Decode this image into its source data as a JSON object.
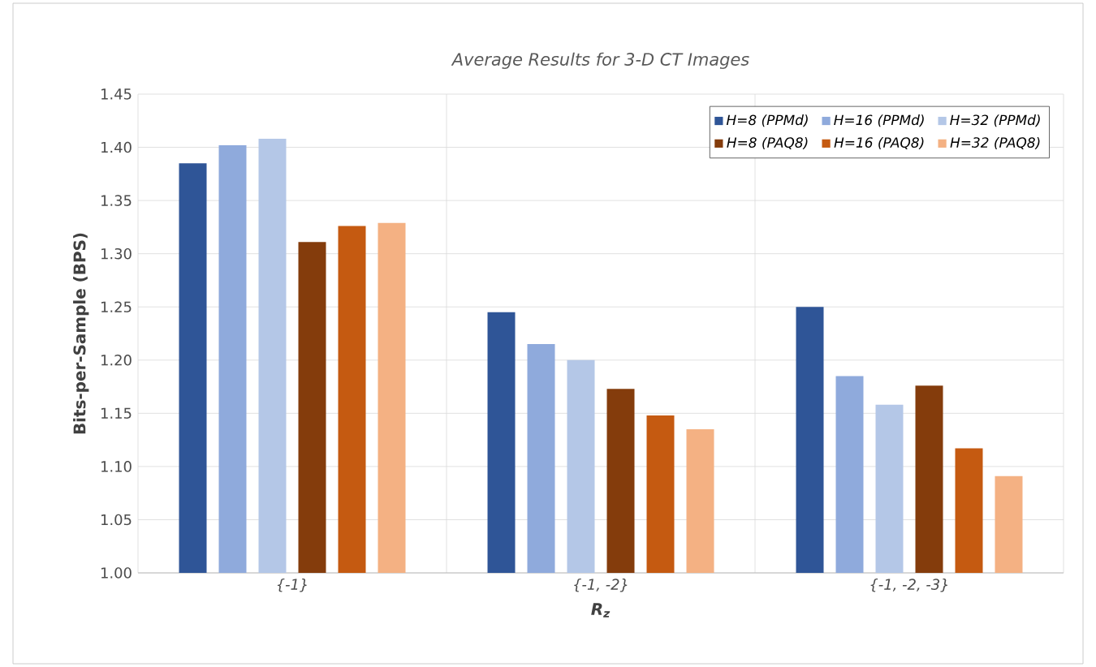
{
  "chart_data": {
    "type": "bar",
    "title": "Average Results for 3-D CT Images",
    "xlabel": "R$_{z}$",
    "ylabel": "Bits-per-Sample (BPS)",
    "categories": [
      "{-1}",
      "{-1, -2}",
      "{-1, -2, -3}"
    ],
    "series": [
      {
        "name": "H=8 (PPMd)",
        "color": "#2f5597",
        "values": [
          1.385,
          1.245,
          1.25
        ]
      },
      {
        "name": "H=16 (PPMd)",
        "color": "#8faadc",
        "values": [
          1.402,
          1.215,
          1.185
        ]
      },
      {
        "name": "H=32 (PPMd)",
        "color": "#b4c7e7",
        "values": [
          1.408,
          1.2,
          1.158
        ]
      },
      {
        "name": "H=8 (PAQ8)",
        "color": "#843c0c",
        "values": [
          1.311,
          1.173,
          1.176
        ]
      },
      {
        "name": "H=16 (PAQ8)",
        "color": "#c55a11",
        "values": [
          1.326,
          1.148,
          1.117
        ]
      },
      {
        "name": "H=32 (PAQ8)",
        "color": "#f4b183",
        "values": [
          1.329,
          1.135,
          1.091
        ]
      }
    ],
    "ylim": [
      1.0,
      1.45
    ],
    "yticks": [
      {
        "value": 1.0,
        "label": "1.00"
      },
      {
        "value": 1.05,
        "label": "1.05"
      },
      {
        "value": 1.1,
        "label": "1.10"
      },
      {
        "value": 1.15,
        "label": "1.15"
      },
      {
        "value": 1.2,
        "label": "1.20"
      },
      {
        "value": 1.25,
        "label": "1.25"
      },
      {
        "value": 1.3,
        "label": "1.30"
      },
      {
        "value": 1.35,
        "label": "1.35"
      },
      {
        "value": 1.4,
        "label": "1.40"
      },
      {
        "value": 1.45,
        "label": "1.45"
      }
    ],
    "grid": true,
    "legend": "top right"
  }
}
